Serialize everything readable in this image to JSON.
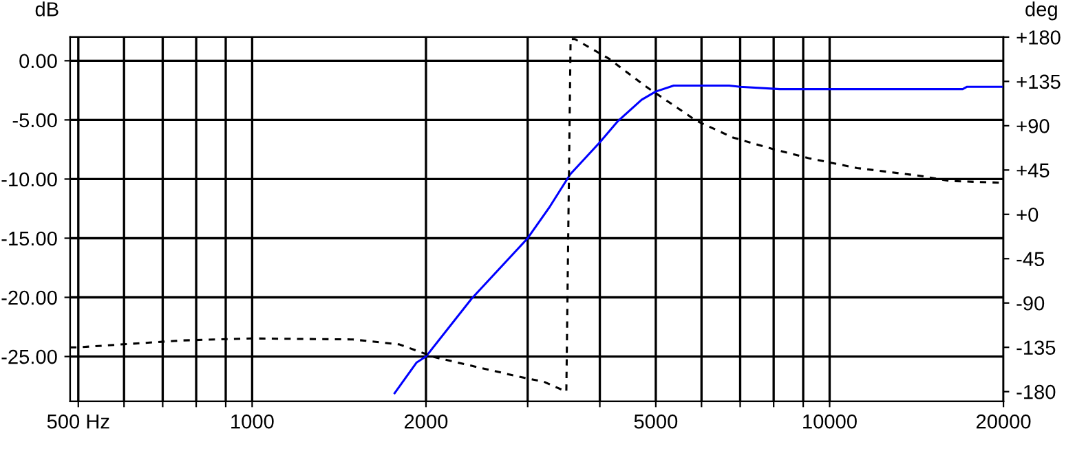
{
  "chart_data": {
    "type": "line",
    "ylabel": "dB",
    "y2label": "deg",
    "log": "x",
    "xlim": [
      484,
      20000
    ],
    "xticks": [
      {
        "value": 500,
        "label": "500 Hz"
      },
      {
        "value": 600,
        "label": null
      },
      {
        "value": 700,
        "label": null
      },
      {
        "value": 800,
        "label": null
      },
      {
        "value": 900,
        "label": null
      },
      1000,
      2000,
      {
        "value": 3000,
        "label": null
      },
      {
        "value": 4000,
        "label": null
      },
      5000,
      {
        "value": 6000,
        "label": null
      },
      {
        "value": 7000,
        "label": null
      },
      {
        "value": 8000,
        "label": null
      },
      {
        "value": 9000,
        "label": null
      },
      10000,
      20000
    ],
    "ylim": [
      -28.8,
      2.0
    ],
    "yticks": [
      {
        "value": 0,
        "label": "0.00"
      },
      {
        "value": -5,
        "label": "-5.00"
      },
      {
        "value": -10,
        "label": "-10.00"
      },
      {
        "value": -15,
        "label": "-15.00"
      },
      {
        "value": -20,
        "label": "-20.00"
      },
      {
        "value": -25,
        "label": "-25.00"
      }
    ],
    "y2lim": [
      -190,
      180
    ],
    "y2ticks": [
      {
        "value": 180,
        "label": "+180"
      },
      {
        "value": 135,
        "label": "+135"
      },
      {
        "value": 90,
        "label": "+90"
      },
      {
        "value": 45,
        "label": "+45"
      },
      {
        "value": 0,
        "label": "+0"
      },
      {
        "value": -45,
        "label": "-45"
      },
      {
        "value": -90,
        "label": "-90"
      },
      {
        "value": -135,
        "label": "-135"
      },
      {
        "value": -180,
        "label": "-180"
      }
    ],
    "grid": true,
    "series": [
      {
        "color": "#0000ff",
        "line_style": "solid",
        "x": [
          1765,
          1927,
          2000,
          2400,
          3000,
          3280,
          3555,
          4000,
          4300,
          4725,
          5000,
          5370,
          5750,
          6700,
          7000,
          8200,
          10000,
          17000,
          17300,
          20000
        ],
        "values": [
          -28.1,
          -25.5,
          -25.0,
          -20.1,
          -15.0,
          -12.3,
          -9.6,
          -6.9,
          -5.1,
          -3.3,
          -2.6,
          -2.1,
          -2.1,
          -2.1,
          -2.2,
          -2.4,
          -2.4,
          -2.4,
          -2.2,
          -2.2
        ]
      },
      {
        "color": "#000000",
        "line_style": "dashed",
        "axis": "y2",
        "x": [
          484,
          500,
          633,
          758,
          1000,
          1493,
          1797,
          2070,
          2490,
          2960,
          3200,
          3500,
          3560,
          3620,
          4150,
          4800,
          5880,
          6800,
          7900,
          9200,
          11160,
          14400,
          16100,
          20000
        ],
        "values": [
          -135,
          -135,
          -131,
          -128,
          -126,
          -127,
          -132,
          -145,
          -156,
          -166,
          -170,
          -180,
          178,
          178,
          158,
          130,
          95,
          78,
          67,
          57,
          47,
          39,
          34,
          32
        ]
      }
    ]
  }
}
